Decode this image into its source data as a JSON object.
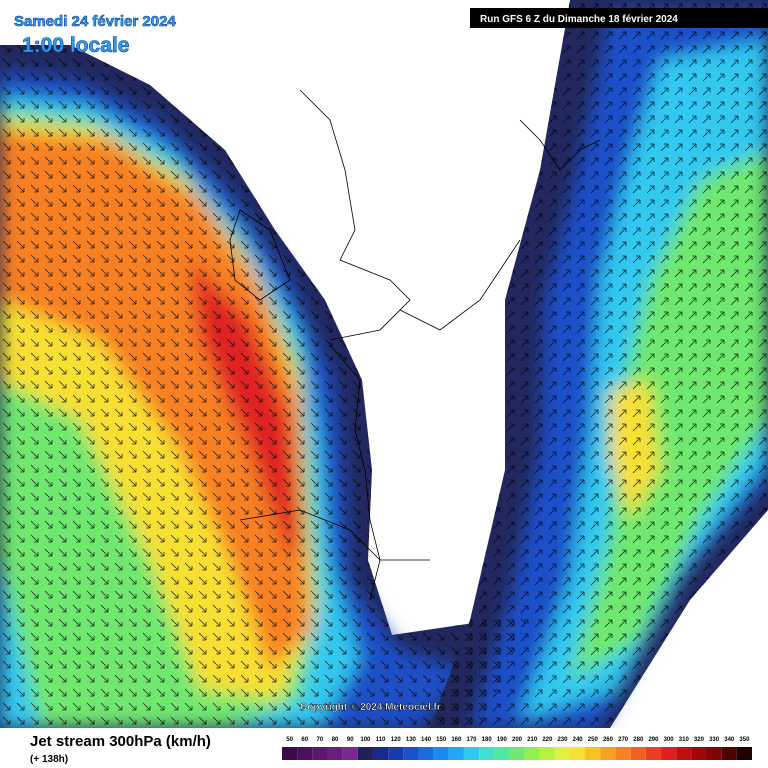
{
  "header": {
    "date": "Samedi 24 février 2024",
    "time": "1:00 locale",
    "run": "Run GFS 6 Z du Dimanche 18 février 2024"
  },
  "map": {
    "copyright": "Copyright © 2024 Meteociel.fr"
  },
  "footer": {
    "title": "Jet stream 300hPa (km/h)",
    "lead": "(+ 138h)"
  },
  "legend": {
    "labels": [
      50,
      60,
      70,
      80,
      90,
      100,
      110,
      120,
      130,
      140,
      150,
      160,
      170,
      180,
      190,
      200,
      210,
      220,
      230,
      240,
      250,
      260,
      270,
      280,
      290,
      300,
      310,
      320,
      330,
      340,
      350
    ],
    "colors": [
      "#3a0a4a",
      "#4a1060",
      "#5a1870",
      "#6a1f80",
      "#7a2890",
      "#20205a",
      "#1a2a8a",
      "#1a3aaa",
      "#1a50c8",
      "#1a6ae0",
      "#1a8af0",
      "#20a8f8",
      "#30c8f0",
      "#40e0d0",
      "#50e8a0",
      "#70e870",
      "#90f050",
      "#b8f040",
      "#e0f040",
      "#f8e030",
      "#f8c020",
      "#f8a020",
      "#f88020",
      "#f06020",
      "#e84020",
      "#e02020",
      "#c01010",
      "#a00808",
      "#800404",
      "#500202",
      "#200000"
    ]
  }
}
